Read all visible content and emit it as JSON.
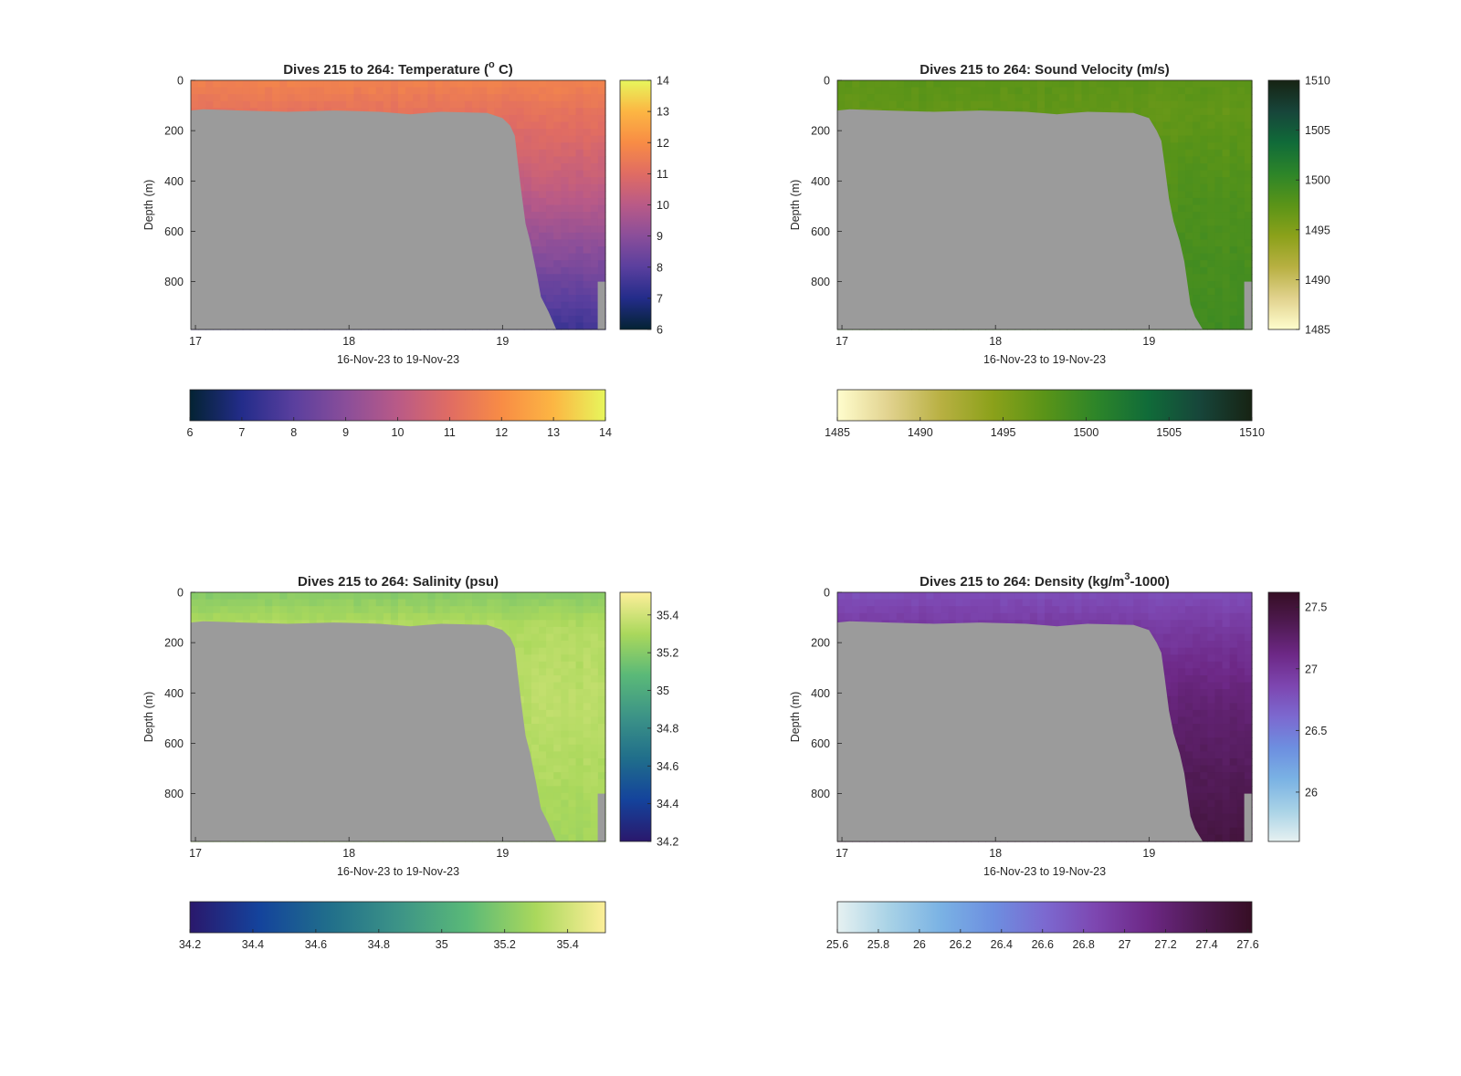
{
  "figure": {
    "background": "#ffffff",
    "mask_color": "#9b9b9b"
  },
  "chart_data": [
    {
      "type": "heatmap",
      "title_text": "Dives 215 to 264: Temperature (",
      "title_sup": "o",
      "title_tail": " C)",
      "xlabel": "16-Nov-23 to 19-Nov-23",
      "ylabel": "Depth (m)",
      "x_range": [
        16.97,
        19.67
      ],
      "x_ticks": [
        17,
        18,
        19
      ],
      "x_tick_labels": [
        "17",
        "18",
        "19"
      ],
      "y_range": [
        0,
        990
      ],
      "y_reversed": true,
      "y_ticks": [
        0,
        200,
        400,
        600,
        800
      ],
      "y_tick_labels": [
        "0",
        "200",
        "400",
        "600",
        "800"
      ],
      "colormap": "thermal",
      "colormap_stops": [
        "#042333",
        "#232c8a",
        "#5a3f9e",
        "#8a4e9a",
        "#b95a87",
        "#e06c63",
        "#f88c45",
        "#fcb643",
        "#e7f65c"
      ],
      "clim": [
        6,
        14
      ],
      "vertical_colorbar_ticks": [
        "6",
        "7",
        "8",
        "9",
        "10",
        "11",
        "12",
        "13",
        "14"
      ],
      "horizontal_colorbar_ticks": [
        "6",
        "7",
        "8",
        "9",
        "10",
        "11",
        "12",
        "13",
        "14"
      ],
      "profile": {
        "surface": 11.7,
        "shelf_bottom": 11.2,
        "deep": 10.2,
        "bottom": 7.5,
        "deep_scale": 980
      },
      "mask_x": [
        16.97,
        17.05,
        17.3,
        17.6,
        17.9,
        18.2,
        18.4,
        18.5,
        18.6,
        18.9,
        19.0,
        19.05,
        19.08,
        19.1,
        19.12,
        19.15,
        19.18,
        19.22,
        19.25,
        19.3,
        19.35,
        19.67
      ],
      "mask_depth": [
        120,
        115,
        120,
        125,
        120,
        125,
        135,
        130,
        125,
        130,
        150,
        180,
        220,
        330,
        430,
        570,
        640,
        760,
        860,
        920,
        990,
        990
      ],
      "right_edge_gap": {
        "x_from": 19.62,
        "depth_from": 800
      }
    },
    {
      "type": "heatmap",
      "title_text": "Dives 215 to 264: Sound Velocity (m/s)",
      "title_sup": "",
      "title_tail": "",
      "xlabel": "16-Nov-23 to 19-Nov-23",
      "ylabel": "Depth (m)",
      "x_range": [
        16.97,
        19.67
      ],
      "x_ticks": [
        17,
        18,
        19
      ],
      "x_tick_labels": [
        "17",
        "18",
        "19"
      ],
      "y_range": [
        0,
        990
      ],
      "y_reversed": true,
      "y_ticks": [
        0,
        200,
        400,
        600,
        800
      ],
      "y_tick_labels": [
        "0",
        "200",
        "400",
        "600",
        "800"
      ],
      "colormap": "speed",
      "colormap_stops": [
        "#fffdcd",
        "#e1d28e",
        "#b8b042",
        "#8ba11a",
        "#5a9418",
        "#2d8529",
        "#106b39",
        "#17453a",
        "#172313"
      ],
      "clim": [
        1485,
        1510
      ],
      "vertical_colorbar_ticks": [
        "1485",
        "1490",
        "1495",
        "1500",
        "1505",
        "1510"
      ],
      "horizontal_colorbar_ticks": [
        "1485",
        "1490",
        "1495",
        "1500",
        "1505",
        "1510"
      ],
      "profile": {
        "surface": 1497.4,
        "shelf_bottom": 1497.0,
        "deep": 1498.2,
        "bottom": 1499.2,
        "deep_scale": 980
      },
      "mask_x": [
        16.97,
        17.05,
        17.3,
        17.6,
        17.9,
        18.2,
        18.4,
        18.5,
        18.6,
        18.9,
        19.0,
        19.05,
        19.08,
        19.1,
        19.13,
        19.16,
        19.2,
        19.23,
        19.27,
        19.3,
        19.35,
        19.67
      ],
      "mask_depth": [
        120,
        115,
        120,
        125,
        120,
        125,
        135,
        130,
        125,
        130,
        150,
        200,
        240,
        330,
        470,
        560,
        640,
        720,
        890,
        940,
        990,
        990
      ],
      "right_edge_gap": {
        "x_from": 19.62,
        "depth_from": 800
      }
    },
    {
      "type": "heatmap",
      "title_text": "Dives 215 to 264: Salinity (psu)",
      "title_sup": "",
      "title_tail": "",
      "xlabel": "16-Nov-23 to 19-Nov-23",
      "ylabel": "Depth (m)",
      "x_range": [
        16.97,
        19.67
      ],
      "x_ticks": [
        17,
        18,
        19
      ],
      "x_tick_labels": [
        "17",
        "18",
        "19"
      ],
      "y_range": [
        0,
        990
      ],
      "y_reversed": true,
      "y_ticks": [
        0,
        200,
        400,
        600,
        800
      ],
      "y_tick_labels": [
        "0",
        "200",
        "400",
        "600",
        "800"
      ],
      "colormap": "haline",
      "colormap_stops": [
        "#2a186c",
        "#14439c",
        "#206e8b",
        "#3c9387",
        "#5ab978",
        "#aad85c",
        "#fdef9a"
      ],
      "clim": [
        34.2,
        35.52
      ],
      "vertical_colorbar_ticks": [
        "34.2",
        "34.4",
        "34.6",
        "34.8",
        "35",
        "35.2",
        "35.4"
      ],
      "horizontal_colorbar_ticks": [
        "34.2",
        "34.4",
        "34.6",
        "34.8",
        "35",
        "35.2",
        "35.4"
      ],
      "profile": {
        "surface": 35.2,
        "shelf_bottom": 35.32,
        "deep": 35.35,
        "bottom": 35.28,
        "deep_scale": 980
      },
      "mask_x": [
        16.97,
        17.05,
        17.3,
        17.6,
        17.9,
        18.2,
        18.4,
        18.5,
        18.6,
        18.9,
        19.0,
        19.05,
        19.08,
        19.1,
        19.12,
        19.15,
        19.18,
        19.22,
        19.25,
        19.3,
        19.35,
        19.67
      ],
      "mask_depth": [
        120,
        115,
        120,
        125,
        120,
        125,
        135,
        130,
        125,
        130,
        150,
        180,
        220,
        330,
        430,
        570,
        640,
        760,
        860,
        920,
        990,
        990
      ],
      "right_edge_gap": {
        "x_from": 19.62,
        "depth_from": 800
      }
    },
    {
      "type": "heatmap",
      "title_text": "Dives 215 to 264: Density (kg/m",
      "title_sup": "3",
      "title_tail": "-1000)",
      "xlabel": "16-Nov-23 to 19-Nov-23",
      "ylabel": "Depth (m)",
      "x_range": [
        16.97,
        19.67
      ],
      "x_ticks": [
        17,
        18,
        19
      ],
      "x_tick_labels": [
        "17",
        "18",
        "19"
      ],
      "y_range": [
        0,
        990
      ],
      "y_reversed": true,
      "y_ticks": [
        0,
        200,
        400,
        600,
        800
      ],
      "y_tick_labels": [
        "0",
        "200",
        "400",
        "600",
        "800"
      ],
      "colormap": "dense",
      "colormap_stops": [
        "#e6f1f1",
        "#a8d2e6",
        "#7ab2e4",
        "#6d8fe0",
        "#7c69d0",
        "#7d46b0",
        "#6d2886",
        "#4f1a52",
        "#360e24"
      ],
      "clim": [
        25.6,
        27.62
      ],
      "vertical_colorbar_ticks": [
        "26",
        "26.5",
        "27",
        "27.5"
      ],
      "vertical_colorbar_tick_values": [
        26,
        26.5,
        27,
        27.5
      ],
      "horizontal_colorbar_ticks": [
        "25.6",
        "25.8",
        "26",
        "26.2",
        "26.4",
        "26.6",
        "26.8",
        "27",
        "27.2",
        "27.4",
        "27.6"
      ],
      "profile": {
        "surface": 26.8,
        "shelf_bottom": 26.95,
        "deep": 27.2,
        "bottom": 27.45,
        "deep_scale": 980
      },
      "mask_x": [
        16.97,
        17.05,
        17.3,
        17.6,
        17.9,
        18.2,
        18.4,
        18.5,
        18.6,
        18.9,
        19.0,
        19.05,
        19.08,
        19.1,
        19.13,
        19.16,
        19.2,
        19.23,
        19.27,
        19.3,
        19.35,
        19.67
      ],
      "mask_depth": [
        120,
        115,
        120,
        125,
        120,
        125,
        135,
        130,
        125,
        130,
        150,
        200,
        240,
        330,
        470,
        560,
        640,
        720,
        890,
        940,
        990,
        990
      ],
      "right_edge_gap": {
        "x_from": 19.62,
        "depth_from": 800
      }
    }
  ]
}
